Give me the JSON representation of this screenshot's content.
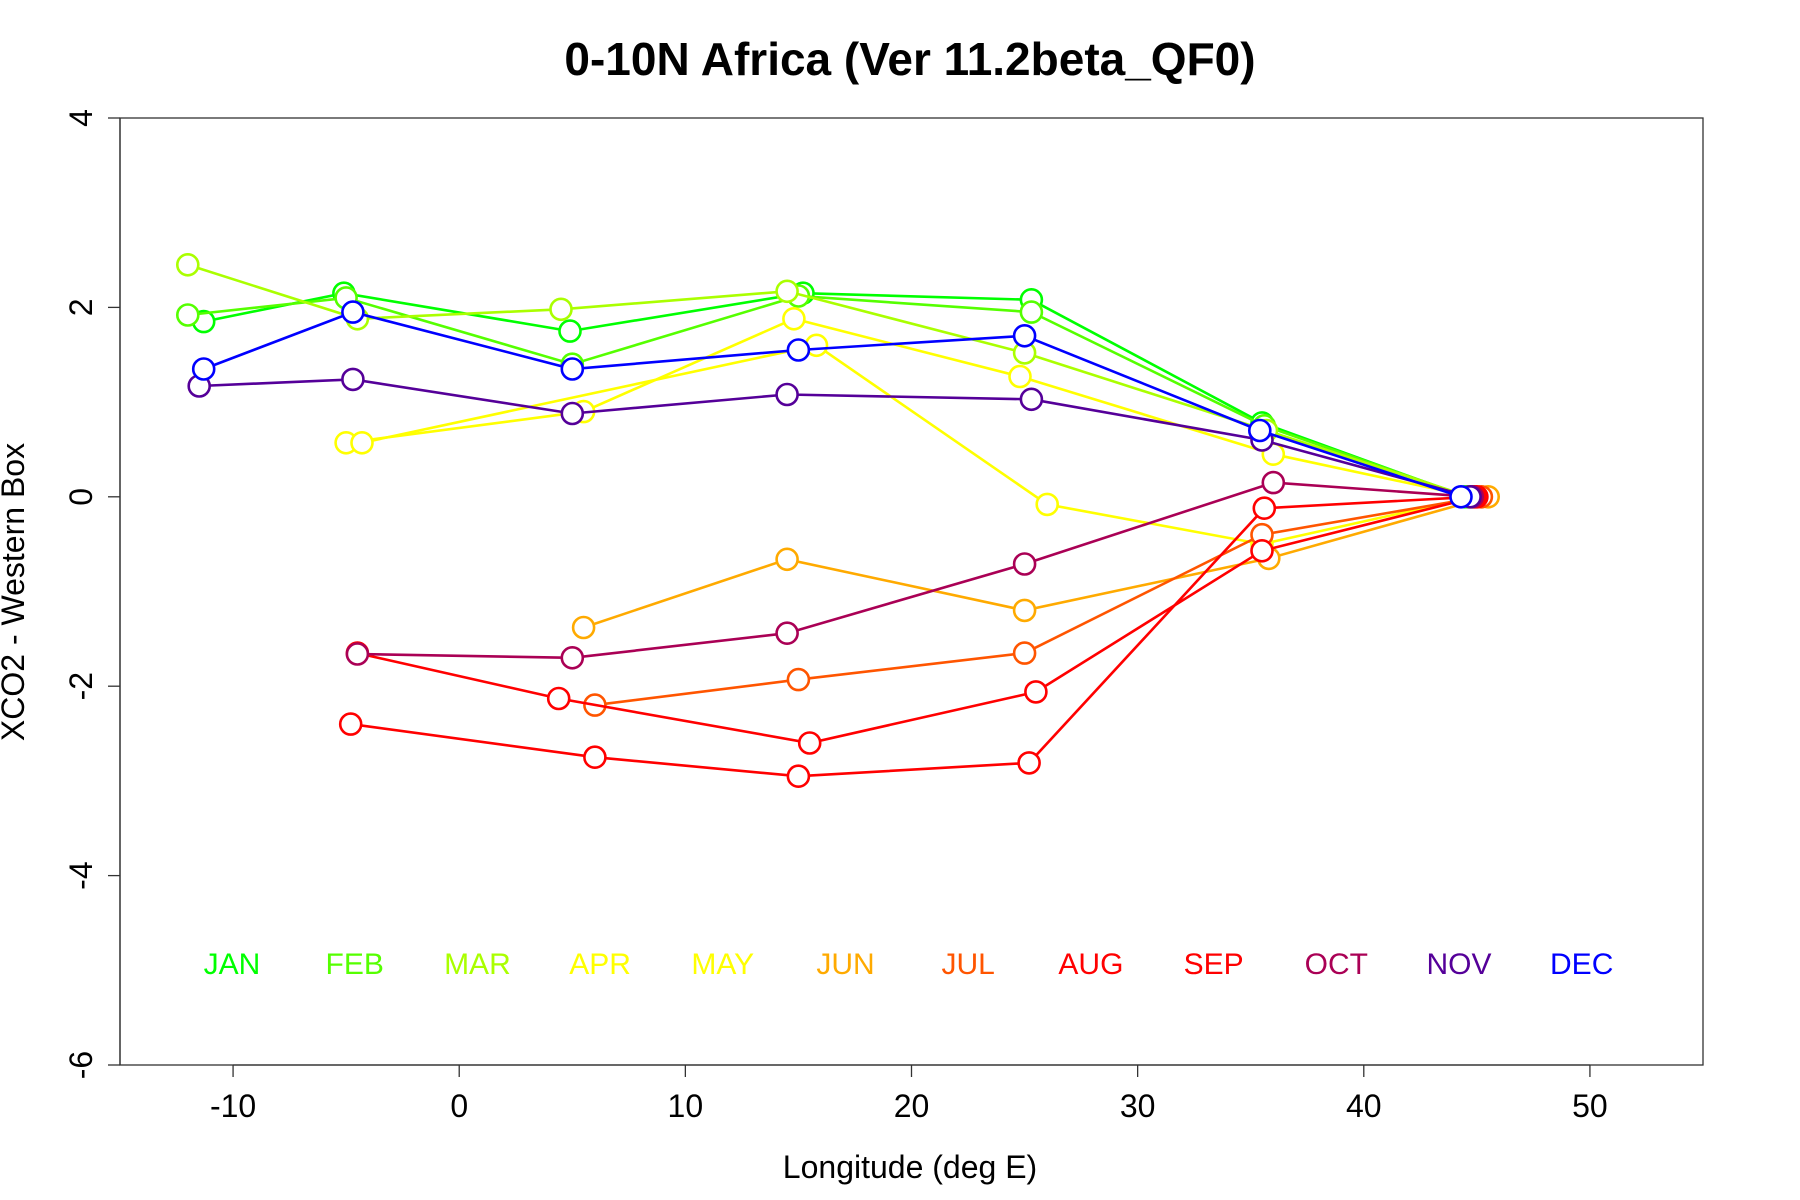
{
  "chart_data": {
    "type": "line",
    "title": "0-10N Africa (Ver 11.2beta_QF0)",
    "xlabel": "Longitude (deg E)",
    "ylabel": "XCO2 - Western Box",
    "xlim": [
      -15,
      55
    ],
    "ylim": [
      -6,
      4
    ],
    "xticks": [
      -10,
      0,
      10,
      20,
      30,
      40,
      50
    ],
    "yticks": [
      -6,
      -4,
      -2,
      0,
      2,
      4
    ],
    "legend": {
      "placement": "bottom-inside",
      "entries": [
        "JAN",
        "FEB",
        "MAR",
        "APR",
        "MAY",
        "JUN",
        "JUL",
        "AUG",
        "SEP",
        "OCT",
        "NOV",
        "DEC"
      ]
    },
    "series": [
      {
        "name": "JAN",
        "color": "#00ff00",
        "x": [
          -11.3,
          -5.1,
          4.9,
          15.2,
          25.3,
          35.5,
          44.5
        ],
        "y": [
          1.85,
          2.15,
          1.75,
          2.15,
          2.08,
          0.78,
          0.0
        ]
      },
      {
        "name": "FEB",
        "color": "#55ff00",
        "x": [
          -12.0,
          -5.0,
          5.0,
          15.0,
          25.3,
          35.6,
          44.6
        ],
        "y": [
          1.92,
          2.1,
          1.4,
          2.12,
          1.95,
          0.75,
          0.0
        ]
      },
      {
        "name": "MAR",
        "color": "#aaff00",
        "x": [
          -12.0,
          -4.5,
          4.5,
          14.5,
          25.0,
          35.7,
          44.7
        ],
        "y": [
          2.45,
          1.88,
          1.98,
          2.17,
          1.52,
          0.7,
          0.0
        ]
      },
      {
        "name": "APR",
        "color": "#ffff00",
        "x": [
          -5.0,
          5.5,
          14.8,
          24.8,
          36.0,
          44.8
        ],
        "y": [
          0.57,
          0.9,
          1.88,
          1.27,
          0.45,
          0.0
        ]
      },
      {
        "name": "MAY",
        "color": "#ffff00",
        "x": [
          -4.3,
          15.8,
          26.0,
          35.5,
          44.9
        ],
        "y": [
          0.57,
          1.6,
          -0.08,
          -0.5,
          0.0
        ]
      },
      {
        "name": "JUN",
        "color": "#ffaa00",
        "x": [
          5.5,
          14.5,
          25.0,
          35.8,
          45.5
        ],
        "y": [
          -1.38,
          -0.66,
          -1.2,
          -0.65,
          0.0
        ]
      },
      {
        "name": "JUL",
        "color": "#ff5500",
        "x": [
          6.0,
          15.0,
          25.0,
          35.5,
          45.2
        ],
        "y": [
          -2.2,
          -1.93,
          -1.65,
          -0.4,
          0.0
        ]
      },
      {
        "name": "AUG",
        "color": "#ff0000",
        "x": [
          -4.5,
          4.4,
          15.5,
          25.5,
          35.5,
          45.0
        ],
        "y": [
          -1.65,
          -2.13,
          -2.6,
          -2.06,
          -0.57,
          0.0
        ]
      },
      {
        "name": "SEP",
        "color": "#ff0000",
        "x": [
          -4.8,
          6.0,
          15.0,
          25.2,
          35.6,
          44.9
        ],
        "y": [
          -2.4,
          -2.75,
          -2.95,
          -2.81,
          -0.12,
          0.0
        ]
      },
      {
        "name": "OCT",
        "color": "#aa0055",
        "x": [
          -4.5,
          5.0,
          14.5,
          25.0,
          36.0,
          44.8
        ],
        "y": [
          -1.66,
          -1.7,
          -1.44,
          -0.71,
          0.15,
          0.0
        ]
      },
      {
        "name": "NOV",
        "color": "#550099",
        "x": [
          -11.5,
          -4.7,
          5.0,
          14.5,
          25.3,
          35.5,
          44.7
        ],
        "y": [
          1.17,
          1.24,
          0.88,
          1.08,
          1.03,
          0.6,
          0.0
        ]
      },
      {
        "name": "DEC",
        "color": "#0000ff",
        "x": [
          -11.3,
          -4.7,
          5.0,
          15.0,
          25.0,
          35.4,
          44.3
        ],
        "y": [
          1.35,
          1.95,
          1.35,
          1.55,
          1.7,
          0.7,
          0.0
        ]
      }
    ]
  }
}
